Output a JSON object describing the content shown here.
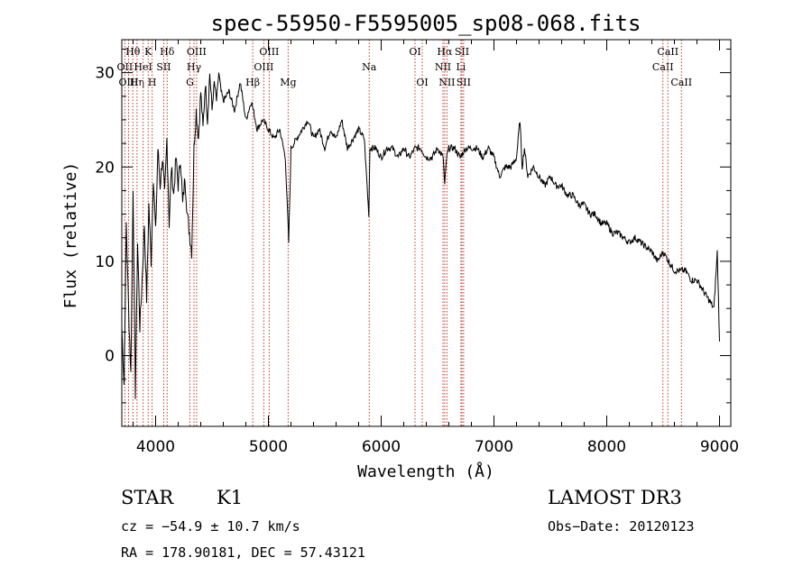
{
  "chart_data": {
    "type": "line",
    "title": "spec-55950-F5595005_sp08-068.fits",
    "xlabel": "Wavelength (Å)",
    "ylabel": "Flux (relative)",
    "xlim": [
      3700,
      9100
    ],
    "ylim": [
      -7.5,
      33.5
    ],
    "xticks": [
      4000,
      5000,
      6000,
      7000,
      8000,
      9000
    ],
    "yticks": [
      0,
      10,
      20,
      30
    ],
    "grid": false,
    "legend": "none",
    "series": [
      {
        "name": "flux",
        "x": [
          3700,
          3720,
          3740,
          3760,
          3780,
          3800,
          3820,
          3840,
          3860,
          3880,
          3900,
          3920,
          3940,
          3960,
          3980,
          4000,
          4020,
          4040,
          4060,
          4080,
          4100,
          4120,
          4140,
          4160,
          4180,
          4200,
          4220,
          4240,
          4260,
          4280,
          4300,
          4320,
          4340,
          4360,
          4380,
          4400,
          4420,
          4440,
          4460,
          4480,
          4500,
          4520,
          4540,
          4560,
          4580,
          4600,
          4650,
          4700,
          4750,
          4800,
          4850,
          4900,
          4950,
          5000,
          5050,
          5100,
          5150,
          5180,
          5200,
          5250,
          5300,
          5350,
          5400,
          5450,
          5500,
          5550,
          5600,
          5650,
          5700,
          5750,
          5800,
          5850,
          5890,
          5900,
          5950,
          6000,
          6050,
          6100,
          6150,
          6200,
          6250,
          6300,
          6350,
          6400,
          6450,
          6500,
          6550,
          6563,
          6580,
          6600,
          6650,
          6700,
          6750,
          6800,
          6850,
          6900,
          6950,
          7000,
          7050,
          7100,
          7150,
          7200,
          7230,
          7250,
          7270,
          7300,
          7350,
          7400,
          7450,
          7500,
          7550,
          7600,
          7650,
          7700,
          7750,
          7800,
          7850,
          7900,
          7950,
          8000,
          8050,
          8100,
          8150,
          8200,
          8250,
          8300,
          8350,
          8400,
          8450,
          8500,
          8550,
          8600,
          8650,
          8700,
          8750,
          8800,
          8850,
          8900,
          8950,
          8980,
          9000
        ],
        "y": [
          3,
          -3,
          14,
          5,
          -2,
          18,
          -4,
          12,
          3,
          8,
          14,
          6,
          16,
          10,
          19,
          13,
          22,
          18,
          21,
          17,
          23,
          14,
          20,
          17,
          21,
          18,
          21,
          16,
          19,
          15,
          13,
          11,
          22,
          26,
          23,
          28,
          24,
          29,
          25,
          30,
          26,
          29,
          27,
          30,
          28,
          27,
          28,
          26,
          29,
          25,
          27,
          24,
          25,
          24,
          23,
          24,
          21,
          12,
          22,
          23,
          24,
          25,
          23,
          24,
          22,
          24,
          23,
          25,
          22,
          23,
          24,
          23,
          15,
          22,
          22,
          21,
          22,
          22,
          21,
          22,
          21,
          22,
          22,
          21,
          21,
          22,
          21,
          18,
          21,
          22,
          22,
          21,
          22,
          22,
          22,
          21,
          22,
          21,
          19,
          20,
          20,
          21,
          25,
          20,
          22,
          19,
          20,
          19,
          18,
          19,
          18,
          18,
          17,
          17,
          16,
          16,
          15,
          15,
          14,
          14,
          13,
          13,
          12.5,
          12,
          12.5,
          12,
          11.5,
          11,
          10,
          11,
          10,
          9,
          9,
          9,
          8,
          8,
          7,
          6,
          5,
          11,
          1.5
        ]
      }
    ],
    "line_markers": [
      {
        "label": "Hθ",
        "x": 3798,
        "row": 1
      },
      {
        "label": "OII",
        "x": 3727,
        "row": 2
      },
      {
        "label": "OIII",
        "x": 3760,
        "row": 3
      },
      {
        "label": "Hη",
        "x": 3835,
        "row": 3
      },
      {
        "label": "HeI",
        "x": 3889,
        "row": 2
      },
      {
        "label": "K",
        "x": 3934,
        "row": 1
      },
      {
        "label": "H",
        "x": 3969,
        "row": 3
      },
      {
        "label": "SII",
        "x": 4072,
        "row": 2
      },
      {
        "label": "Hδ",
        "x": 4102,
        "row": 1
      },
      {
        "label": "G",
        "x": 4304,
        "row": 3
      },
      {
        "label": "Hγ",
        "x": 4340,
        "row": 2
      },
      {
        "label": "OIII",
        "x": 4363,
        "row": 1
      },
      {
        "label": "Hβ",
        "x": 4861,
        "row": 3
      },
      {
        "label": "OIII",
        "x": 4959,
        "row": 2
      },
      {
        "label": "OIII",
        "x": 5007,
        "row": 1
      },
      {
        "label": "Mg",
        "x": 5175,
        "row": 3
      },
      {
        "label": "Na",
        "x": 5894,
        "row": 2
      },
      {
        "label": "OI",
        "x": 6300,
        "row": 1
      },
      {
        "label": "OI",
        "x": 6364,
        "row": 3
      },
      {
        "label": "NII",
        "x": 6548,
        "row": 2
      },
      {
        "label": "Hα",
        "x": 6563,
        "row": 1
      },
      {
        "label": "NII",
        "x": 6583,
        "row": 3
      },
      {
        "label": "Li",
        "x": 6707,
        "row": 2
      },
      {
        "label": "SII",
        "x": 6716,
        "row": 1
      },
      {
        "label": "SII",
        "x": 6731,
        "row": 3
      },
      {
        "label": "CaII",
        "x": 8498,
        "row": 2
      },
      {
        "label": "CaII",
        "x": 8542,
        "row": 1
      },
      {
        "label": "CaII",
        "x": 8662,
        "row": 3
      }
    ]
  },
  "info": {
    "class": "STAR",
    "subclass": "K1",
    "survey": "LAMOST DR3",
    "cz": "cz = −54.9 ± 10.7 km/s",
    "obs_date": "Obs−Date: 20120123",
    "coords": "RA = 178.90181, DEC =  57.43121"
  }
}
